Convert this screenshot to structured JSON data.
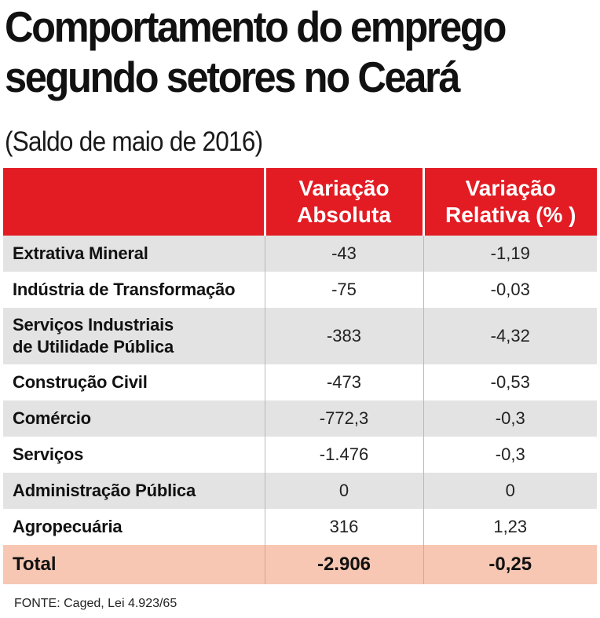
{
  "chart_data": {
    "type": "table",
    "title_lines": [
      "Comportamento do emprego",
      "segundo setores no Ceará"
    ],
    "subtitle": "(Saldo de maio de 2016)",
    "columns": [
      "",
      "Variação Absoluta",
      "Variação Relativa (% )"
    ],
    "column_header_lines": [
      [],
      [
        "Variação",
        "Absoluta"
      ],
      [
        "Variação",
        "Relativa (% )"
      ]
    ],
    "rows": [
      {
        "sector_lines": [
          "Extrativa Mineral"
        ],
        "absolute": "-43",
        "relative": "-1,19"
      },
      {
        "sector_lines": [
          "Indústria de Transformação"
        ],
        "absolute": "-75",
        "relative": "-0,03"
      },
      {
        "sector_lines": [
          "Serviços Industriais",
          "de Utilidade Pública"
        ],
        "absolute": "-383",
        "relative": "-4,32"
      },
      {
        "sector_lines": [
          "Construção Civil"
        ],
        "absolute": "-473",
        "relative": "-0,53"
      },
      {
        "sector_lines": [
          "Comércio"
        ],
        "absolute": "-772,3",
        "relative": "-0,3"
      },
      {
        "sector_lines": [
          "Serviços"
        ],
        "absolute": "-1.476",
        "relative": "-0,3"
      },
      {
        "sector_lines": [
          "Administração Pública"
        ],
        "absolute": "0",
        "relative": "0"
      },
      {
        "sector_lines": [
          "Agropecuária"
        ],
        "absolute": "316",
        "relative": "1,23"
      }
    ],
    "total": {
      "label": "Total",
      "absolute": "-2.906",
      "relative": "-0,25"
    },
    "source": "FONTE: Caged, Lei 4.923/65"
  },
  "colors": {
    "header_background": "#e31b23",
    "header_text": "#ffffff",
    "stripe_background": "#e3e3e3",
    "total_background": "#f7c7b3"
  }
}
